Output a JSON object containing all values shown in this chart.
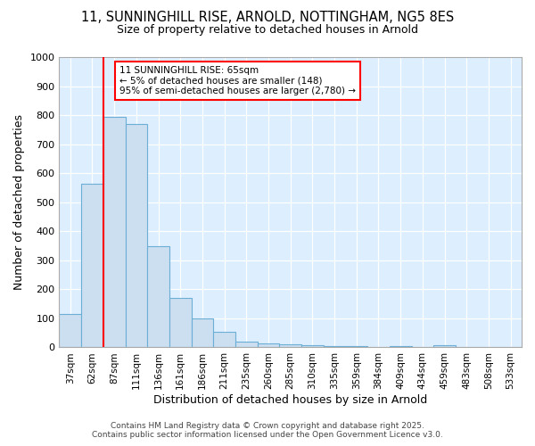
{
  "title1": "11, SUNNINGHILL RISE, ARNOLD, NOTTINGHAM, NG5 8ES",
  "title2": "Size of property relative to detached houses in Arnold",
  "xlabel": "Distribution of detached houses by size in Arnold",
  "ylabel": "Number of detached properties",
  "bar_values": [
    115,
    565,
    795,
    770,
    350,
    170,
    100,
    55,
    20,
    15,
    10,
    8,
    5,
    5,
    0,
    5,
    0,
    8,
    0,
    0,
    0
  ],
  "categories": [
    "37sqm",
    "62sqm",
    "87sqm",
    "111sqm",
    "136sqm",
    "161sqm",
    "186sqm",
    "211sqm",
    "235sqm",
    "260sqm",
    "285sqm",
    "310sqm",
    "335sqm",
    "359sqm",
    "384sqm",
    "409sqm",
    "434sqm",
    "459sqm",
    "483sqm",
    "508sqm",
    "533sqm"
  ],
  "bar_color": "#ccdff0",
  "bar_edgecolor": "#6baed6",
  "background_color": "#ddeeff",
  "ylim": [
    0,
    1000
  ],
  "yticks": [
    0,
    100,
    200,
    300,
    400,
    500,
    600,
    700,
    800,
    900,
    1000
  ],
  "red_line_index": 2,
  "annotation_line1": "11 SUNNINGHILL RISE: 65sqm",
  "annotation_line2": "← 5% of detached houses are smaller (148)",
  "annotation_line3": "95% of semi-detached houses are larger (2,780) →",
  "footer1": "Contains HM Land Registry data © Crown copyright and database right 2025.",
  "footer2": "Contains public sector information licensed under the Open Government Licence v3.0."
}
